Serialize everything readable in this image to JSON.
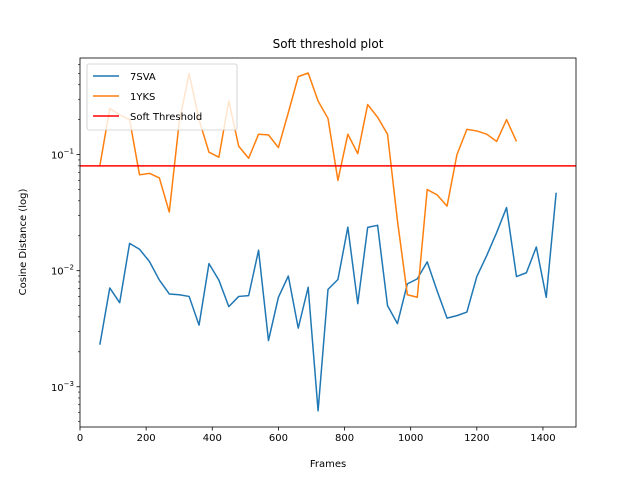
{
  "chart_data": {
    "type": "line",
    "title": "Soft threshold plot",
    "xlabel": "Frames",
    "ylabel": "Cosine Distance (log)",
    "xlim": [
      0,
      1500
    ],
    "ylim": [
      0.00045,
      0.68
    ],
    "yscale": "log",
    "xticks": [
      0,
      200,
      400,
      600,
      800,
      1000,
      1200,
      1400
    ],
    "yticks": [
      {
        "value": 0.001,
        "base": "10",
        "exp": "−3"
      },
      {
        "value": 0.01,
        "base": "10",
        "exp": "−2"
      },
      {
        "value": 0.1,
        "base": "10",
        "exp": "−1"
      }
    ],
    "grid": false,
    "legend_position": "top-left",
    "series": [
      {
        "name": "7SVA",
        "color": "#1f77b4",
        "x": [
          60,
          90,
          120,
          150,
          180,
          210,
          240,
          270,
          300,
          330,
          360,
          390,
          420,
          450,
          480,
          510,
          540,
          570,
          600,
          630,
          660,
          690,
          720,
          750,
          780,
          810,
          840,
          870,
          900,
          930,
          960,
          990,
          1020,
          1050,
          1080,
          1110,
          1140,
          1170,
          1200,
          1230,
          1260,
          1290,
          1320,
          1350,
          1380,
          1410,
          1440
        ],
        "y": [
          0.0023,
          0.0071,
          0.0053,
          0.0172,
          0.0153,
          0.012,
          0.0083,
          0.0063,
          0.0062,
          0.006,
          0.0034,
          0.0115,
          0.0083,
          0.0049,
          0.006,
          0.0061,
          0.015,
          0.0025,
          0.0059,
          0.009,
          0.0032,
          0.0072,
          0.00062,
          0.0069,
          0.0084,
          0.0237,
          0.0052,
          0.0236,
          0.0246,
          0.005,
          0.0035,
          0.0077,
          0.0085,
          0.0119,
          0.0067,
          0.0039,
          0.0041,
          0.0044,
          0.0089,
          0.0135,
          0.0213,
          0.035,
          0.0089,
          0.0096,
          0.016,
          0.0059,
          0.047
        ]
      },
      {
        "name": "1YKS",
        "color": "#ff7f0e",
        "x": [
          60,
          90,
          120,
          150,
          180,
          210,
          240,
          270,
          300,
          330,
          360,
          390,
          420,
          450,
          480,
          510,
          540,
          570,
          600,
          630,
          660,
          690,
          720,
          750,
          780,
          810,
          840,
          870,
          900,
          930,
          960,
          990,
          1020,
          1050,
          1080,
          1110,
          1140,
          1170,
          1200,
          1230,
          1260,
          1290,
          1320
        ],
        "y": [
          0.08,
          0.25,
          0.22,
          0.2,
          0.067,
          0.069,
          0.063,
          0.032,
          0.19,
          0.5,
          0.2,
          0.105,
          0.095,
          0.29,
          0.118,
          0.093,
          0.15,
          0.148,
          0.115,
          0.23,
          0.47,
          0.505,
          0.29,
          0.205,
          0.06,
          0.15,
          0.102,
          0.27,
          0.21,
          0.15,
          0.027,
          0.0062,
          0.0059,
          0.05,
          0.045,
          0.036,
          0.1,
          0.165,
          0.16,
          0.15,
          0.13,
          0.2,
          0.13
        ]
      },
      {
        "name": "Soft Threshold",
        "color": "#ff0000",
        "hline": 0.08
      }
    ]
  }
}
